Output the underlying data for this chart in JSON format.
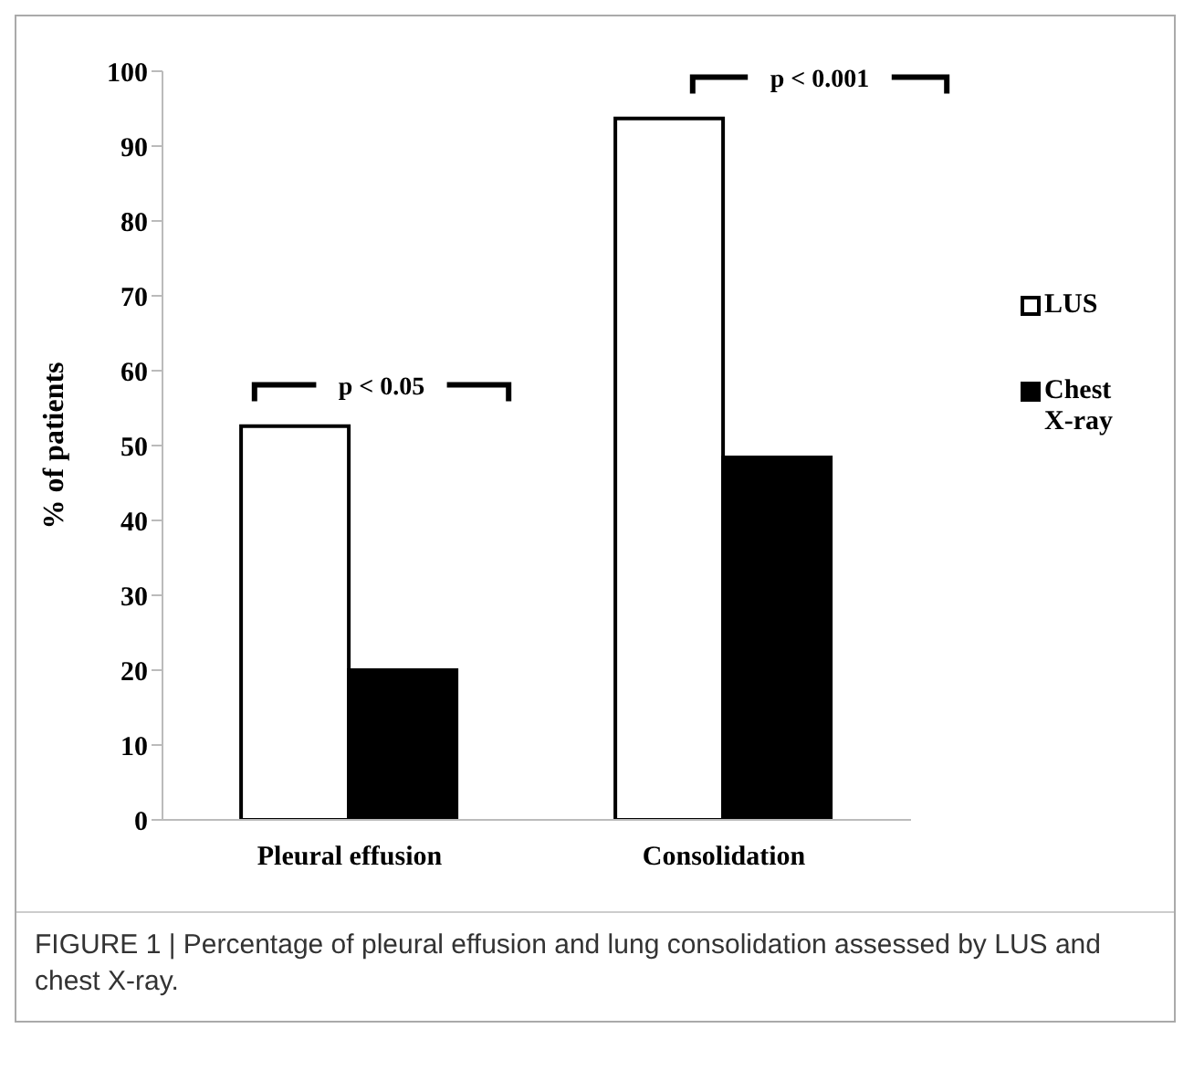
{
  "chart_data": {
    "type": "bar",
    "ylabel": "% of patients",
    "categories": [
      "Pleural effusion",
      "Consolidation"
    ],
    "series": [
      {
        "name": "LUS",
        "color": "#ffffff",
        "values": [
          52.6,
          93.7
        ]
      },
      {
        "name": "Chest X-ray",
        "color": "#000000",
        "values": [
          20.0,
          48.4
        ]
      }
    ],
    "ylim": [
      0,
      100
    ],
    "yticks": [
      0,
      10,
      20,
      30,
      40,
      50,
      60,
      70,
      80,
      90,
      100
    ],
    "grid": false,
    "legend": "right",
    "annotations": [
      "p < 0.05",
      "p < 0.001",
      "FIGURE 1 | Percentage of pleural effusion and lung consolidation assessed by LUS and chest X-ray."
    ]
  }
}
